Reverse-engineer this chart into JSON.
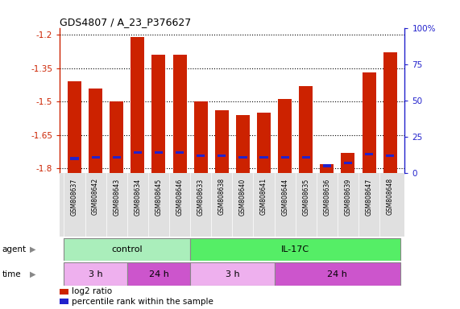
{
  "title": "GDS4807 / A_23_P376627",
  "samples": [
    "GSM808637",
    "GSM808642",
    "GSM808643",
    "GSM808634",
    "GSM808645",
    "GSM808646",
    "GSM808633",
    "GSM808638",
    "GSM808640",
    "GSM808641",
    "GSM808644",
    "GSM808635",
    "GSM808636",
    "GSM808639",
    "GSM808647",
    "GSM808648"
  ],
  "log2_values": [
    -1.41,
    -1.44,
    -1.5,
    -1.21,
    -1.29,
    -1.29,
    -1.5,
    -1.54,
    -1.56,
    -1.55,
    -1.49,
    -1.43,
    -1.78,
    -1.73,
    -1.37,
    -1.28
  ],
  "percentile_values": [
    10,
    11,
    11,
    14,
    14,
    14,
    12,
    12,
    11,
    11,
    11,
    11,
    5,
    7,
    13,
    12
  ],
  "ymin": -1.82,
  "ymax": -1.17,
  "yticks": [
    -1.2,
    -1.35,
    -1.5,
    -1.65,
    -1.8
  ],
  "right_yticks": [
    100,
    75,
    50,
    25,
    0
  ],
  "bar_color": "#cc2200",
  "percentile_color": "#2222cc",
  "bar_width": 0.65,
  "agent_groups": [
    {
      "label": "control",
      "start": 0,
      "end": 5,
      "color": "#aaeebb"
    },
    {
      "label": "IL-17C",
      "start": 6,
      "end": 15,
      "color": "#55ee66"
    }
  ],
  "time_groups": [
    {
      "label": "3 h",
      "start": 0,
      "end": 2,
      "color": "#eeb0ee"
    },
    {
      "label": "24 h",
      "start": 3,
      "end": 5,
      "color": "#cc55cc"
    },
    {
      "label": "3 h",
      "start": 6,
      "end": 9,
      "color": "#eeb0ee"
    },
    {
      "label": "24 h",
      "start": 10,
      "end": 15,
      "color": "#cc55cc"
    }
  ],
  "agent_label": "agent",
  "time_label": "time",
  "legend_items": [
    {
      "label": "log2 ratio",
      "color": "#cc2200"
    },
    {
      "label": "percentile rank within the sample",
      "color": "#2222cc"
    }
  ],
  "left_axis_color": "#cc2200",
  "right_axis_color": "#2222cc"
}
